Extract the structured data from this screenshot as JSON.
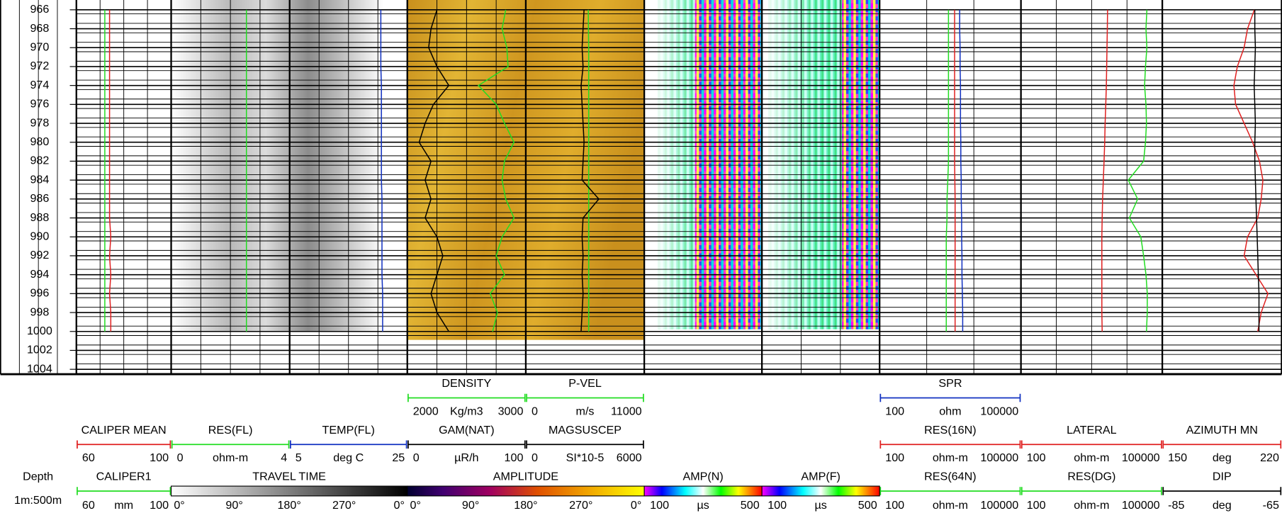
{
  "depth": {
    "label": "Depth",
    "scale": "1m:500m",
    "ticks": [
      966,
      968,
      970,
      972,
      974,
      976,
      978,
      980,
      982,
      984,
      986,
      988,
      990,
      992,
      994,
      996,
      998,
      1000,
      1002,
      1004
    ],
    "samples": [
      966,
      968,
      970,
      972,
      974,
      976,
      978,
      980,
      982,
      984,
      986,
      988,
      990,
      992,
      994,
      996,
      998,
      1000
    ]
  },
  "tracks": [
    {
      "curves": [
        {
          "name": "CALIPER MEAN",
          "color": "#e02020",
          "scale": {
            "min": 60,
            "max": 100
          },
          "values": [
            74,
            74,
            74,
            74,
            74,
            74,
            74,
            74,
            74,
            74,
            74,
            74,
            74.5,
            74,
            74.5,
            74,
            74.5,
            74.5
          ]
        },
        {
          "name": "CALIPER1",
          "color": "#22dd22",
          "scale": {
            "min": 60,
            "unit": "mm",
            "max": 100
          },
          "values": [
            72,
            72,
            72,
            72,
            72,
            72,
            72,
            72,
            72,
            72,
            72,
            72,
            72,
            72,
            72,
            72,
            72,
            72
          ]
        }
      ]
    },
    {
      "curves": [
        {
          "name": "RES(FL)",
          "color": "#22dd22",
          "scale": {
            "min": 0,
            "unit": "ohm-m",
            "max": 4
          },
          "values": [
            2.54,
            2.54,
            2.54,
            2.54,
            2.54,
            2.54,
            2.54,
            2.54,
            2.54,
            2.54,
            2.54,
            2.54,
            2.54,
            2.54,
            2.54,
            2.54,
            2.54,
            2.54
          ]
        }
      ]
    },
    {
      "curves": [
        {
          "name": "TEMP(FL)",
          "color": "#1030c0",
          "scale": {
            "min": 5,
            "unit": "deg C",
            "max": 25
          },
          "values": [
            20.5,
            20.5,
            20.5,
            20.5,
            20.6,
            20.6,
            20.6,
            20.6,
            20.6,
            20.6,
            20.7,
            20.7,
            20.7,
            20.7,
            20.7,
            20.8,
            20.8,
            20.8
          ]
        }
      ]
    },
    {
      "curves": [
        {
          "name": "DENSITY",
          "color": "#22dd22",
          "scale": {
            "min": 2000,
            "unit": "Kg/m3",
            "max": 3000
          },
          "values": [
            2830,
            2800,
            2840,
            2850,
            2600,
            2750,
            2820,
            2900,
            2820,
            2800,
            2830,
            2900,
            2800,
            2750,
            2820,
            2700,
            2760,
            2720
          ]
        },
        {
          "name": "GAM(NAT)",
          "color": "#000000",
          "scale": {
            "min": 0,
            "unit": "µR/h",
            "max": 100
          },
          "values": [
            25,
            20,
            18,
            25,
            35,
            22,
            15,
            10,
            20,
            15,
            20,
            15,
            25,
            30,
            25,
            20,
            25,
            35
          ]
        }
      ]
    },
    {
      "curves": [
        {
          "name": "P-VEL",
          "color": "#22dd22",
          "scale": {
            "min": 0,
            "unit": "m/s",
            "max": 11000
          },
          "values": [
            5800,
            5820,
            5840,
            5840,
            5840,
            5840,
            5840,
            5840,
            5840,
            5840,
            5840,
            5840,
            5840,
            5840,
            5840,
            5840,
            5840,
            5840
          ]
        },
        {
          "name": "MAGSUSCEP",
          "color": "#000000",
          "scale": {
            "min": 0,
            "unit": "SI*10-5",
            "max": 6000
          },
          "values": [
            2950,
            2900,
            2850,
            2900,
            2800,
            2850,
            2900,
            2950,
            2900,
            2850,
            3700,
            2900,
            2850,
            2900,
            2850,
            2900,
            2850,
            2800
          ]
        }
      ]
    },
    {
      "curves": [
        {
          "name": "SPR",
          "color": "#1030c0",
          "log": true,
          "scale": {
            "min": 100,
            "unit": "ohm",
            "max": 100000
          },
          "values": [
            5000,
            5000,
            5100,
            5100,
            5200,
            5200,
            5200,
            5300,
            5300,
            5400,
            5400,
            5500,
            5500,
            5600,
            5600,
            5700,
            5800,
            5800
          ]
        },
        {
          "name": "RES(16N)",
          "color": "#e02020",
          "log": true,
          "scale": {
            "min": 100,
            "unit": "ohm-m",
            "max": 100000
          },
          "values": [
            3900,
            3900,
            3900,
            3900,
            3900,
            3900,
            3900,
            3900,
            3900,
            3950,
            4000,
            4000,
            4000,
            4000,
            4000,
            4000,
            4000,
            4000
          ]
        },
        {
          "name": "RES(64N)",
          "color": "#22dd22",
          "log": true,
          "scale": {
            "min": 100,
            "unit": "ohm-m",
            "max": 100000
          },
          "values": [
            2900,
            2900,
            2900,
            2900,
            2900,
            2900,
            2900,
            2900,
            2900,
            2800,
            2700,
            2700,
            2600,
            2600,
            2600,
            2600,
            2600,
            2600
          ]
        }
      ]
    },
    {
      "curves": [
        {
          "name": "LATERAL",
          "color": "#e02020",
          "log": true,
          "scale": {
            "min": 100,
            "unit": "ohm-m",
            "max": 100000
          },
          "values": [
            6900,
            6800,
            6700,
            6600,
            6500,
            6300,
            6100,
            6000,
            5800,
            5600,
            5400,
            5300,
            5200,
            5200,
            5200,
            5200,
            5200,
            5300
          ]
        },
        {
          "name": "RES(DG)",
          "color": "#22dd22",
          "log": true,
          "scale": {
            "min": 100,
            "unit": "ohm-m",
            "max": 100000
          },
          "values": [
            47000,
            45000,
            47000,
            44000,
            42000,
            45000,
            46000,
            44000,
            40000,
            19000,
            30000,
            20000,
            35000,
            40000,
            45000,
            48000,
            48000,
            46000
          ]
        }
      ]
    },
    {
      "curves": [
        {
          "name": "AZIMUTH MN",
          "color": "#e02020",
          "scale": {
            "min": 150,
            "unit": "deg",
            "max": 220
          },
          "values": [
            204,
            200,
            198,
            194,
            192,
            193,
            198,
            203,
            207,
            209,
            208,
            206,
            200,
            198,
            205,
            212,
            208,
            206
          ]
        },
        {
          "name": "DIP",
          "color": "#000000",
          "scale": {
            "min": -85,
            "unit": "deg",
            "max": -65
          },
          "values": [
            -69.5,
            -69.5,
            -69.4,
            -69.5,
            -69.6,
            -69.5,
            -69.4,
            -69.5,
            -69.5,
            -69.4,
            -69.3,
            -69.2,
            -69.1,
            -69,
            -68.9,
            -68.8,
            -68.8,
            -68.8
          ]
        }
      ]
    }
  ],
  "images": [
    {
      "name": "TRAVEL TIME",
      "labels": [
        "0°",
        "90°",
        "180°",
        "270°",
        "0°"
      ]
    },
    {
      "name": "AMPLITUDE",
      "labels": [
        "0°",
        "90°",
        "180°",
        "270°",
        "0°"
      ]
    },
    {
      "name": "AMP(N)",
      "scale": {
        "min": 100,
        "unit": "µs",
        "max": 500
      }
    },
    {
      "name": "AMP(F)",
      "scale": {
        "min": 100,
        "unit": "µs",
        "max": 500
      }
    }
  ]
}
